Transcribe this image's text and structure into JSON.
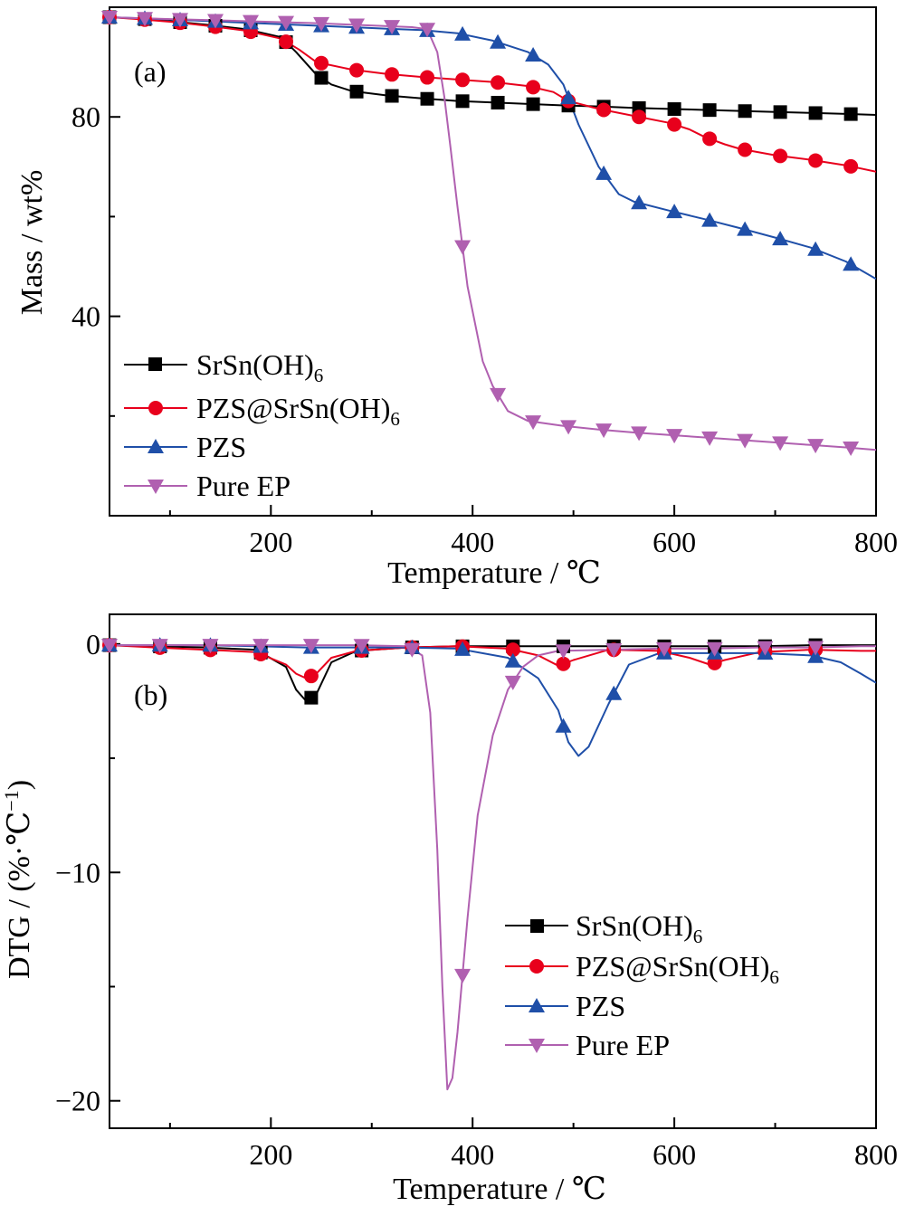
{
  "figure": {
    "panels": [
      {
        "panel_label": "(a)",
        "xlabel": "Temperature / ℃",
        "ylabel": "Mass / wt%",
        "legend": [
          {
            "main": "SrSn(OH)",
            "sub": "6"
          },
          {
            "main": "PZS@SrSn(OH)",
            "sub": "6"
          },
          {
            "main": "PZS",
            "sub": ""
          },
          {
            "main": "Pure EP",
            "sub": ""
          }
        ]
      },
      {
        "panel_label": "(b)",
        "xlabel": "Temperature / ℃",
        "ylabel_main": "DTG / (%·℃",
        "ylabel_sup": "−1",
        "ylabel_close": ")",
        "legend": [
          {
            "main": "SrSn(OH)",
            "sub": "6"
          },
          {
            "main": "PZS@SrSn(OH)",
            "sub": "6"
          },
          {
            "main": "PZS",
            "sub": ""
          },
          {
            "main": "Pure EP",
            "sub": ""
          }
        ]
      }
    ]
  },
  "colors": {
    "SrSn(OH)6": "#000000",
    "PZS@SrSn(OH)6": "#e8001c",
    "PZS": "#1f4fa8",
    "Pure EP": "#b060b0"
  },
  "chart_data": [
    {
      "type": "line",
      "panel": "(a)",
      "xlabel": "Temperature / ℃",
      "ylabel": "Mass / wt%",
      "xlim": [
        40,
        800
      ],
      "ylim": [
        0,
        102
      ],
      "xticks": [
        200,
        400,
        600,
        800
      ],
      "yticks": [
        40,
        80
      ],
      "legend_position": "bottom-left",
      "series": [
        {
          "name": "SrSn(OH)6",
          "marker": "square",
          "color": "#000000",
          "x": [
            40,
            70,
            100,
            140,
            175,
            210,
            225,
            245,
            260,
            280,
            315,
            350,
            385,
            420,
            455,
            490,
            525,
            560,
            595,
            630,
            665,
            700,
            735,
            770,
            800
          ],
          "y": [
            100,
            99.7,
            99.2,
            98.4,
            97.6,
            96,
            93,
            88.5,
            86.5,
            85.2,
            84.3,
            83.7,
            83.2,
            82.9,
            82.6,
            82.3,
            82.1,
            81.8,
            81.6,
            81.4,
            81.2,
            81,
            80.8,
            80.6,
            80.4
          ],
          "marker_x": [
            40,
            70,
            105,
            140,
            175,
            210,
            245,
            280,
            315,
            350,
            385,
            420,
            455,
            490,
            525,
            560,
            595,
            630,
            665,
            700,
            735,
            770
          ]
        },
        {
          "name": "PZS@SrSn(OH)6",
          "marker": "circle",
          "color": "#e8001c",
          "x": [
            40,
            70,
            105,
            140,
            175,
            210,
            228,
            245,
            280,
            315,
            350,
            385,
            420,
            455,
            480,
            495,
            525,
            560,
            595,
            615,
            630,
            650,
            665,
            700,
            735,
            770,
            800
          ],
          "y": [
            100,
            99.6,
            99,
            98.2,
            97.3,
            95.7,
            93.5,
            91,
            89.5,
            88.6,
            88,
            87.5,
            87,
            86.2,
            85,
            83.2,
            81.6,
            80.2,
            78.8,
            77.5,
            76,
            74.5,
            73.6,
            72.3,
            71.4,
            70.3,
            69
          ]
        },
        {
          "name": "PZS",
          "marker": "triangle-up",
          "color": "#1f4fa8",
          "x": [
            40,
            70,
            105,
            140,
            175,
            210,
            245,
            280,
            315,
            350,
            385,
            420,
            455,
            475,
            490,
            505,
            525,
            545,
            560,
            595,
            630,
            665,
            700,
            735,
            770,
            800
          ],
          "y": [
            100,
            99.8,
            99.5,
            99.2,
            98.9,
            98.6,
            98.3,
            98,
            97.7,
            97.4,
            96.8,
            95.3,
            93,
            90.5,
            86.5,
            78.5,
            70,
            64.5,
            63,
            61.2,
            59.5,
            57.7,
            55.8,
            53.8,
            51,
            47.5
          ]
        },
        {
          "name": "Pure EP",
          "marker": "triangle-down",
          "color": "#b060b0",
          "x": [
            40,
            70,
            105,
            140,
            175,
            210,
            245,
            280,
            315,
            340,
            355,
            365,
            372,
            378,
            385,
            395,
            410,
            420,
            435,
            455,
            490,
            525,
            560,
            595,
            630,
            665,
            700,
            735,
            770,
            800
          ],
          "y": [
            100,
            99.8,
            99.6,
            99.4,
            99.2,
            99,
            98.8,
            98.5,
            98.2,
            98,
            97.6,
            93,
            84,
            74,
            62,
            46,
            31,
            26,
            21,
            19,
            18,
            17.3,
            16.7,
            16.2,
            15.7,
            15.2,
            14.7,
            14.2,
            13.7,
            13.2
          ]
        }
      ]
    },
    {
      "type": "line",
      "panel": "(b)",
      "xlabel": "Temperature / ℃",
      "ylabel": "DTG / (%·℃−1)",
      "xlim": [
        40,
        800
      ],
      "ylim": [
        -21.2,
        1.3
      ],
      "xticks": [
        200,
        400,
        600,
        800
      ],
      "yticks": [
        0,
        -10,
        -20
      ],
      "legend_position": "bottom-right",
      "series": [
        {
          "name": "SrSn(OH)6",
          "marker": "square",
          "color": "#000000",
          "x": [
            40,
            85,
            135,
            185,
            215,
            225,
            235,
            245,
            260,
            285,
            335,
            385,
            435,
            485,
            535,
            585,
            635,
            685,
            735,
            785,
            800
          ],
          "y": [
            -0.05,
            -0.1,
            -0.15,
            -0.25,
            -1.0,
            -2.0,
            -2.5,
            -2.2,
            -0.8,
            -0.3,
            -0.15,
            -0.1,
            -0.1,
            -0.1,
            -0.1,
            -0.1,
            -0.1,
            -0.1,
            -0.05,
            -0.05,
            -0.05
          ]
        },
        {
          "name": "PZS@SrSn(OH)6",
          "marker": "circle",
          "color": "#e8001c",
          "x": [
            40,
            85,
            135,
            185,
            215,
            225,
            235,
            245,
            260,
            285,
            335,
            385,
            435,
            465,
            485,
            500,
            535,
            585,
            615,
            635,
            650,
            685,
            735,
            785,
            800
          ],
          "y": [
            -0.05,
            -0.15,
            -0.25,
            -0.35,
            -0.9,
            -1.3,
            -1.5,
            -1.3,
            -0.6,
            -0.3,
            -0.15,
            -0.1,
            -0.2,
            -0.5,
            -0.95,
            -0.7,
            -0.25,
            -0.3,
            -0.6,
            -0.9,
            -0.7,
            -0.35,
            -0.25,
            -0.3,
            -0.3
          ]
        },
        {
          "name": "PZS",
          "marker": "triangle-up",
          "color": "#1f4fa8",
          "x": [
            40,
            85,
            135,
            185,
            235,
            285,
            335,
            385,
            435,
            465,
            485,
            495,
            505,
            515,
            535,
            555,
            585,
            635,
            685,
            735,
            765,
            785,
            800
          ],
          "y": [
            -0.05,
            -0.05,
            -0.05,
            -0.1,
            -0.15,
            -0.15,
            -0.15,
            -0.2,
            -0.6,
            -1.5,
            -2.9,
            -4.3,
            -4.9,
            -4.5,
            -2.6,
            -0.9,
            -0.4,
            -0.4,
            -0.4,
            -0.5,
            -0.8,
            -1.3,
            -1.7
          ]
        },
        {
          "name": "Pure EP",
          "marker": "triangle-down",
          "color": "#b060b0",
          "x": [
            40,
            85,
            135,
            185,
            235,
            285,
            335,
            350,
            358,
            365,
            370,
            375,
            380,
            385,
            395,
            405,
            420,
            435,
            450,
            465,
            485,
            535,
            585,
            635,
            685,
            735,
            785,
            800
          ],
          "y": [
            -0.05,
            -0.05,
            -0.05,
            -0.05,
            -0.05,
            -0.05,
            -0.1,
            -0.5,
            -3,
            -9,
            -15,
            -19.5,
            -19.0,
            -17,
            -12,
            -7.5,
            -4.0,
            -2.0,
            -1.0,
            -0.5,
            -0.3,
            -0.25,
            -0.2,
            -0.2,
            -0.15,
            -0.15,
            -0.1,
            -0.1
          ]
        }
      ]
    }
  ]
}
